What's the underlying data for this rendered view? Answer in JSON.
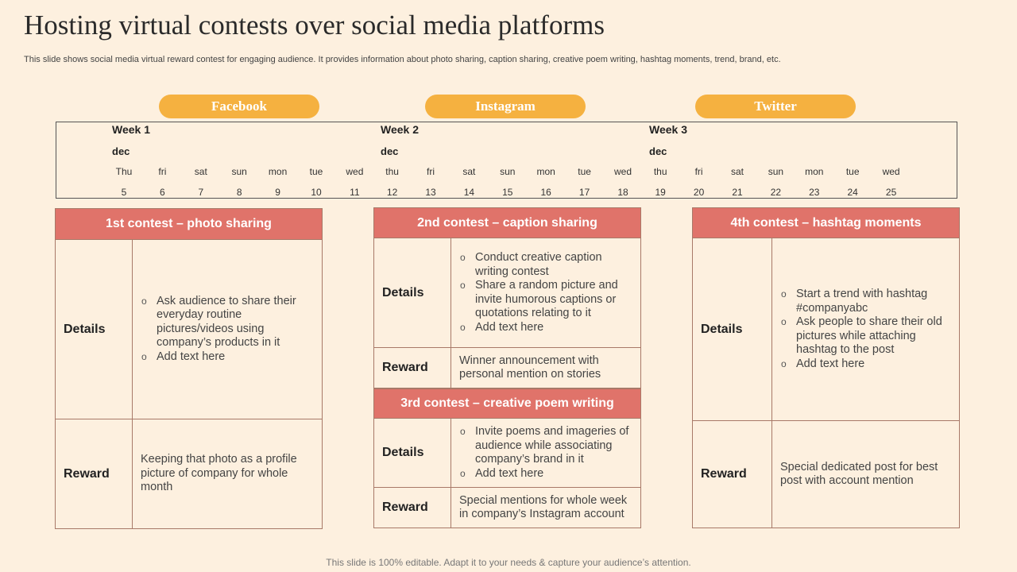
{
  "title": "Hosting virtual contests over social media platforms",
  "subtitle": "This slide shows social media virtual reward contest for engaging audience. It provides information about photo sharing, caption sharing, creative poem writing, hashtag moments, trend, brand, etc.",
  "platforms": [
    "Facebook",
    "Instagram",
    "Twitter"
  ],
  "calendar": {
    "weeks": [
      {
        "label": "Week 1",
        "month": "dec",
        "days": [
          {
            "name": "Thu",
            "num": "5"
          },
          {
            "name": "fri",
            "num": "6"
          },
          {
            "name": "sat",
            "num": "7"
          },
          {
            "name": "sun",
            "num": "8"
          },
          {
            "name": "mon",
            "num": "9"
          },
          {
            "name": "tue",
            "num": "10"
          },
          {
            "name": "wed",
            "num": "11"
          }
        ]
      },
      {
        "label": "Week 2",
        "month": "dec",
        "days": [
          {
            "name": "thu",
            "num": "12"
          },
          {
            "name": "fri",
            "num": "13"
          },
          {
            "name": "sat",
            "num": "14"
          },
          {
            "name": "sun",
            "num": "15"
          },
          {
            "name": "mon",
            "num": "16"
          },
          {
            "name": "tue",
            "num": "17"
          },
          {
            "name": "wed",
            "num": "18"
          }
        ]
      },
      {
        "label": "Week 3",
        "month": "dec",
        "days": [
          {
            "name": "thu",
            "num": "19"
          },
          {
            "name": "fri",
            "num": "20"
          },
          {
            "name": "sat",
            "num": "21"
          },
          {
            "name": "sun",
            "num": "22"
          },
          {
            "name": "mon",
            "num": "23"
          },
          {
            "name": "tue",
            "num": "24"
          },
          {
            "name": "wed",
            "num": "25"
          }
        ]
      }
    ]
  },
  "labels": {
    "details": "Details",
    "reward": "Reward"
  },
  "contests": [
    {
      "title": "1st contest – photo sharing",
      "details": [
        "Ask audience to share their everyday routine pictures/videos using company’s products in it",
        "Add text here"
      ],
      "reward": "Keeping that photo as a profile picture of company for whole month"
    },
    {
      "title": "2nd contest – caption sharing",
      "details": [
        "Conduct creative caption writing contest",
        "Share a random picture and invite humorous captions or quotations relating to it",
        "Add text here"
      ],
      "reward": "Winner announcement with personal mention on stories"
    },
    {
      "title": "3rd contest – creative poem writing",
      "details": [
        "Invite poems and imageries of audience while associating company’s brand in it",
        "Add text here"
      ],
      "reward": "Special mentions for whole week in company’s Instagram account"
    },
    {
      "title": "4th contest – hashtag moments",
      "details": [
        "Start a trend with hashtag #companyabc",
        "Ask people to share their old pictures while attaching hashtag to the post",
        "Add text here"
      ],
      "reward": "Special dedicated post for best post with account mention"
    }
  ],
  "footer": "This slide is 100% editable. Adapt it to your needs & capture your audience’s attention."
}
